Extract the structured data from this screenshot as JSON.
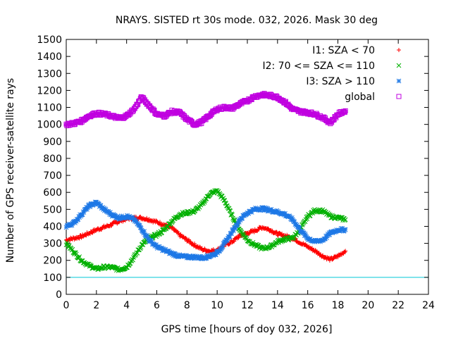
{
  "chart_data": {
    "type": "scatter",
    "title": "NRAYS. SISTED rt 30s mode. 032, 2026. Mask 30 deg",
    "xlabel": "GPS time [hours of doy 032, 2026]",
    "ylabel": "Number of GPS receiver-satellite rays",
    "xlim": [
      0,
      24
    ],
    "ylim": [
      0,
      1500
    ],
    "x_ticks": [
      0,
      2,
      4,
      6,
      8,
      10,
      12,
      14,
      16,
      18,
      20,
      22,
      24
    ],
    "y_ticks": [
      0,
      100,
      200,
      300,
      400,
      500,
      600,
      700,
      800,
      900,
      1000,
      1100,
      1200,
      1300,
      1400,
      1500
    ],
    "grid": false,
    "legend_position": "top-right",
    "reference_line": {
      "y": 100,
      "color": "#00c8d8"
    },
    "series": [
      {
        "name": "I1: SZA < 70",
        "marker": "+",
        "color": "#ff0000",
        "points": [
          [
            0,
            320
          ],
          [
            0.5,
            330
          ],
          [
            1,
            340
          ],
          [
            1.5,
            360
          ],
          [
            2,
            380
          ],
          [
            2.5,
            395
          ],
          [
            3,
            410
          ],
          [
            3.5,
            430
          ],
          [
            4,
            445
          ],
          [
            4.5,
            450
          ],
          [
            5,
            450
          ],
          [
            5.5,
            440
          ],
          [
            6,
            425
          ],
          [
            6.5,
            410
          ],
          [
            7,
            390
          ],
          [
            7.5,
            350
          ],
          [
            8,
            320
          ],
          [
            8.5,
            290
          ],
          [
            9,
            265
          ],
          [
            9.5,
            255
          ],
          [
            10,
            260
          ],
          [
            10.5,
            290
          ],
          [
            11,
            310
          ],
          [
            11.5,
            345
          ],
          [
            12,
            360
          ],
          [
            12.5,
            375
          ],
          [
            13,
            395
          ],
          [
            13.5,
            380
          ],
          [
            14,
            355
          ],
          [
            14.5,
            345
          ],
          [
            15,
            330
          ],
          [
            15.5,
            305
          ],
          [
            16,
            280
          ],
          [
            16.5,
            255
          ],
          [
            17,
            225
          ],
          [
            17.5,
            205
          ],
          [
            18,
            225
          ],
          [
            18.5,
            255
          ]
        ]
      },
      {
        "name": "I2: 70 <= SZA <= 110",
        "marker": "x",
        "color": "#00b000",
        "points": [
          [
            0,
            300
          ],
          [
            0.5,
            250
          ],
          [
            1,
            200
          ],
          [
            1.5,
            170
          ],
          [
            2,
            150
          ],
          [
            2.5,
            160
          ],
          [
            3,
            160
          ],
          [
            3.5,
            145
          ],
          [
            4,
            160
          ],
          [
            4.5,
            220
          ],
          [
            5,
            290
          ],
          [
            5.5,
            330
          ],
          [
            6,
            350
          ],
          [
            6.5,
            380
          ],
          [
            7,
            430
          ],
          [
            7.5,
            470
          ],
          [
            8,
            480
          ],
          [
            8.5,
            490
          ],
          [
            9,
            530
          ],
          [
            9.5,
            590
          ],
          [
            10,
            610
          ],
          [
            10.5,
            550
          ],
          [
            11,
            460
          ],
          [
            11.5,
            380
          ],
          [
            12,
            320
          ],
          [
            12.5,
            290
          ],
          [
            13,
            270
          ],
          [
            13.5,
            280
          ],
          [
            14,
            310
          ],
          [
            14.5,
            325
          ],
          [
            15,
            330
          ],
          [
            15.5,
            380
          ],
          [
            16,
            460
          ],
          [
            16.5,
            495
          ],
          [
            17,
            490
          ],
          [
            17.5,
            460
          ],
          [
            18,
            450
          ],
          [
            18.5,
            440
          ]
        ]
      },
      {
        "name": "I3: SZA > 110",
        "marker": "*",
        "color": "#1e78e6",
        "points": [
          [
            0,
            400
          ],
          [
            0.5,
            420
          ],
          [
            1,
            470
          ],
          [
            1.5,
            520
          ],
          [
            2,
            540
          ],
          [
            2.5,
            500
          ],
          [
            3,
            470
          ],
          [
            3.5,
            450
          ],
          [
            4,
            460
          ],
          [
            4.5,
            440
          ],
          [
            5,
            385
          ],
          [
            5.5,
            320
          ],
          [
            6,
            280
          ],
          [
            6.5,
            260
          ],
          [
            7,
            240
          ],
          [
            7.5,
            225
          ],
          [
            8,
            220
          ],
          [
            8.5,
            220
          ],
          [
            9,
            215
          ],
          [
            9.5,
            225
          ],
          [
            10,
            245
          ],
          [
            10.5,
            300
          ],
          [
            11,
            370
          ],
          [
            11.5,
            440
          ],
          [
            12,
            480
          ],
          [
            12.5,
            500
          ],
          [
            13,
            505
          ],
          [
            13.5,
            495
          ],
          [
            14,
            485
          ],
          [
            14.5,
            470
          ],
          [
            15,
            440
          ],
          [
            15.5,
            380
          ],
          [
            16,
            330
          ],
          [
            16.5,
            310
          ],
          [
            17,
            320
          ],
          [
            17.5,
            360
          ],
          [
            18,
            380
          ],
          [
            18.5,
            380
          ]
        ]
      },
      {
        "name": "global",
        "marker": "square",
        "color": "#c000e0",
        "points": [
          [
            0,
            1000
          ],
          [
            0.5,
            1005
          ],
          [
            1,
            1020
          ],
          [
            1.5,
            1050
          ],
          [
            2,
            1065
          ],
          [
            2.5,
            1060
          ],
          [
            3,
            1050
          ],
          [
            3.5,
            1035
          ],
          [
            4,
            1050
          ],
          [
            4.5,
            1090
          ],
          [
            5,
            1160
          ],
          [
            5.5,
            1110
          ],
          [
            6,
            1060
          ],
          [
            6.5,
            1050
          ],
          [
            7,
            1075
          ],
          [
            7.5,
            1070
          ],
          [
            8,
            1030
          ],
          [
            8.5,
            1000
          ],
          [
            9,
            1015
          ],
          [
            9.5,
            1055
          ],
          [
            10,
            1090
          ],
          [
            10.5,
            1100
          ],
          [
            11,
            1095
          ],
          [
            11.5,
            1120
          ],
          [
            12,
            1140
          ],
          [
            12.5,
            1165
          ],
          [
            13,
            1175
          ],
          [
            13.5,
            1170
          ],
          [
            14,
            1160
          ],
          [
            14.5,
            1130
          ],
          [
            15,
            1090
          ],
          [
            15.5,
            1075
          ],
          [
            16,
            1070
          ],
          [
            16.5,
            1060
          ],
          [
            17,
            1040
          ],
          [
            17.5,
            1010
          ],
          [
            18,
            1060
          ],
          [
            18.5,
            1080
          ]
        ]
      }
    ]
  }
}
